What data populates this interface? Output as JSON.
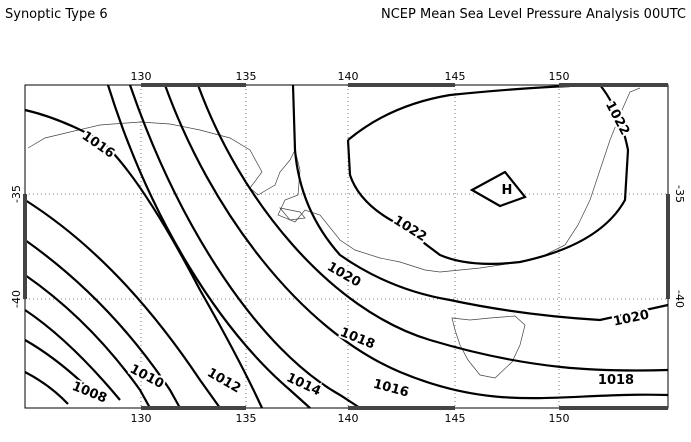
{
  "header": {
    "left_title": "Synoptic Type 6",
    "right_title": "NCEP Mean Sea Level Pressure Analysis 00UTC"
  },
  "map": {
    "lon_labels": [
      "130",
      "135",
      "140",
      "145",
      "150"
    ],
    "lat_labels": [
      "-35",
      "-40"
    ],
    "contour_labels": [
      "1016",
      "1022",
      "1022",
      "1020",
      "1020",
      "1018",
      "1018",
      "1016",
      "1014",
      "1012",
      "1010",
      "1008"
    ],
    "high_label": "H"
  }
}
